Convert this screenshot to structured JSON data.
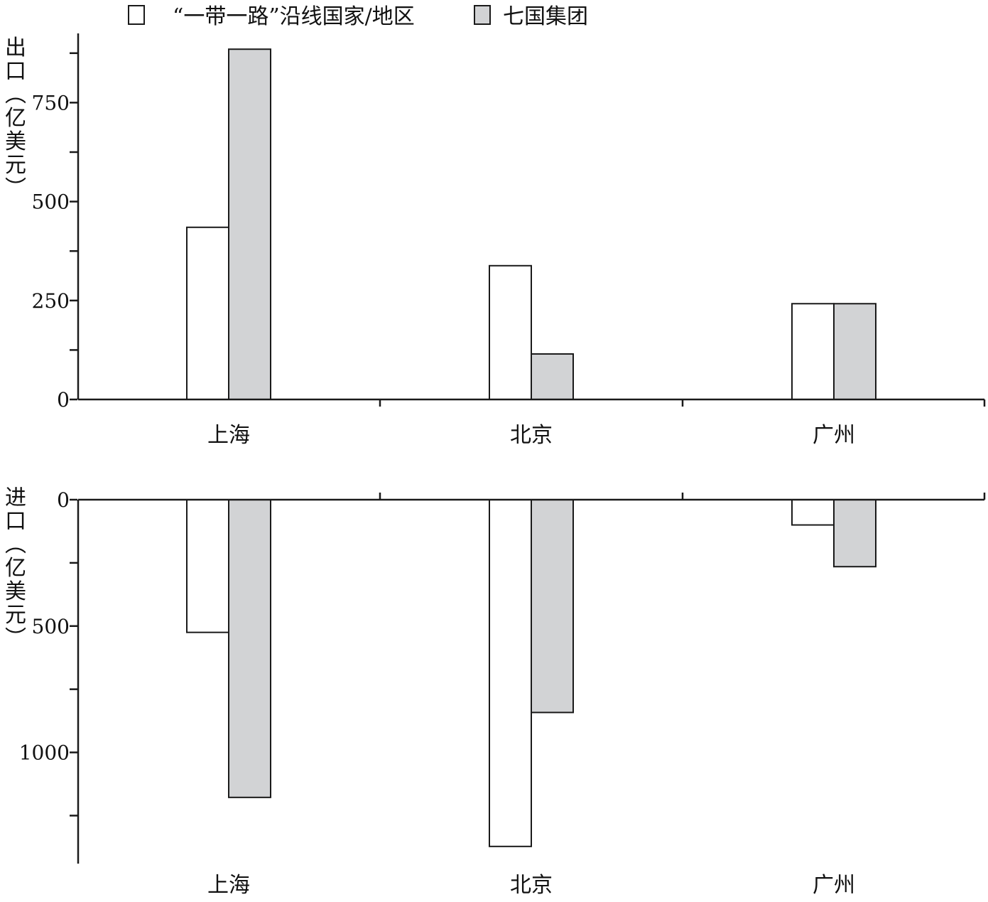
{
  "legend": [
    {
      "label": "“一带一路”沿线国家/地区",
      "color": "#ffffff"
    },
    {
      "label": "七国集团",
      "color": "#d2d3d5"
    }
  ],
  "chart_data": [
    {
      "type": "bar",
      "panel": "export",
      "ylabel": "出口（亿美元）",
      "categories": [
        "上海",
        "北京",
        "广州"
      ],
      "series": [
        {
          "name": "“一带一路”沿线国家/地区",
          "color": "#ffffff",
          "values": [
            435,
            338,
            242
          ]
        },
        {
          "name": "七国集团",
          "color": "#d2d3d5",
          "values": [
            885,
            115,
            242
          ]
        }
      ],
      "ylim": [
        0,
        880
      ],
      "yticks": [
        0,
        250,
        500,
        750
      ],
      "grid": false
    },
    {
      "type": "bar",
      "panel": "import",
      "ylabel": "进口（亿美元）",
      "categories": [
        "上海",
        "北京",
        "广州"
      ],
      "series": [
        {
          "name": "“一带一路”沿线国家/地区",
          "color": "#ffffff",
          "values": [
            525,
            1372,
            100
          ]
        },
        {
          "name": "七国集团",
          "color": "#d2d3d5",
          "values": [
            1178,
            842,
            265
          ]
        }
      ],
      "ylim": [
        0,
        1440
      ],
      "yticks": [
        0,
        500,
        1000
      ],
      "inverted": true,
      "grid": false
    }
  ]
}
